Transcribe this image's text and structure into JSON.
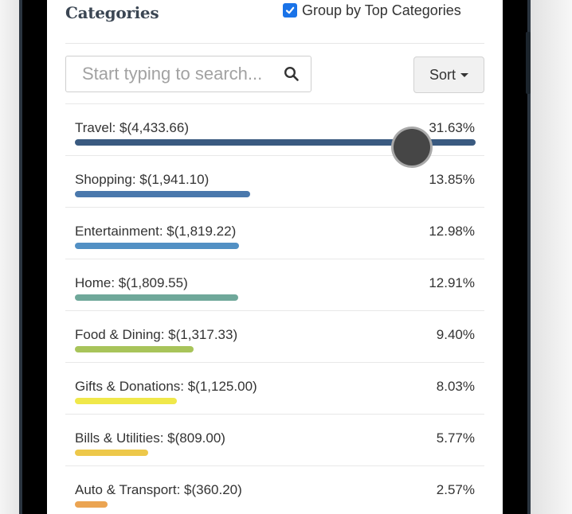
{
  "header": {
    "title": "Categories",
    "group_by_label": "Group by Top Categories",
    "group_by_checked": true
  },
  "search": {
    "placeholder": "Start typing to search...",
    "icon": "search-icon"
  },
  "sort": {
    "label": "Sort",
    "icon": "caret-down-icon"
  },
  "categories": [
    {
      "label": "Travel: $(4,433.66)",
      "percent_text": "31.63%",
      "fill": 1.0,
      "color": "#3a5a80"
    },
    {
      "label": "Shopping: $(1,941.10)",
      "percent_text": "13.85%",
      "fill": 0.438,
      "color": "#4a78ac"
    },
    {
      "label": "Entertainment: $(1,819.22)",
      "percent_text": "12.98%",
      "fill": 0.41,
      "color": "#5290c4"
    },
    {
      "label": "Home: $(1,809.55)",
      "percent_text": "12.91%",
      "fill": 0.408,
      "color": "#6fa89a"
    },
    {
      "label": "Food & Dining: $(1,317.33)",
      "percent_text": "9.40%",
      "fill": 0.297,
      "color": "#a8c45a"
    },
    {
      "label": "Gifts & Donations: $(1,125.00)",
      "percent_text": "8.03%",
      "fill": 0.254,
      "color": "#f0e84a"
    },
    {
      "label": "Bills & Utilities: $(809.00)",
      "percent_text": "5.77%",
      "fill": 0.182,
      "color": "#edc84a"
    },
    {
      "label": "Auto & Transport: $(360.20)",
      "percent_text": "2.57%",
      "fill": 0.081,
      "color": "#eba452"
    }
  ],
  "touch_indicator": {
    "color": "#464646"
  }
}
